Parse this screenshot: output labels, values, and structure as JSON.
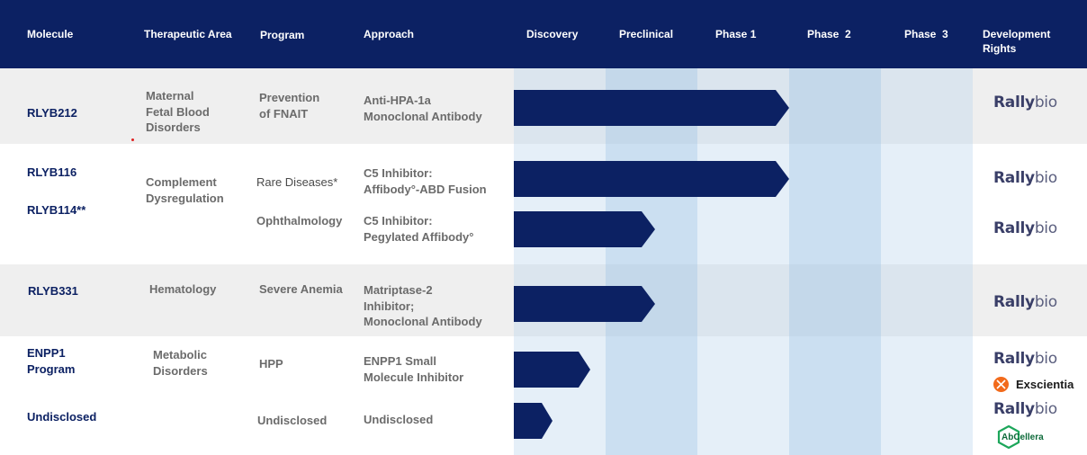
{
  "header": {
    "molecule": "Molecule",
    "therapeutic_area": "Therapeutic Area",
    "program": "Program",
    "approach": "Approach",
    "discovery": "Discovery",
    "preclinical": "Preclinical",
    "phase1": "Phase 1",
    "phase2": "Phase  2",
    "phase3": "Phase  3",
    "rights_line1": "Development",
    "rights_line2": "Rights"
  },
  "rows": {
    "rlyb212": {
      "molecule": "RLYB212",
      "area": [
        "Maternal",
        "Fetal Blood",
        "Disorders"
      ],
      "program": [
        "Prevention",
        "of FNAIT"
      ],
      "approach": [
        "Anti-HPA-1a",
        "Monoclonal Antibody"
      ],
      "stage": "Phase 1"
    },
    "rlyb116": {
      "molecule": "RLYB116",
      "program": "Rare Diseases*",
      "approach": [
        "C5 Inhibitor:",
        "Affibody°-ABD Fusion"
      ],
      "stage": "Phase 1"
    },
    "complement": {
      "area": [
        "Complement",
        "Dysregulation"
      ]
    },
    "rlyb114": {
      "molecule": "RLYB114**",
      "program": "Ophthalmology",
      "approach": [
        "C5 Inhibitor:",
        "Pegylated Affibody°"
      ],
      "stage": "Preclinical"
    },
    "rlyb331": {
      "molecule": "RLYB331",
      "area": "Hematology",
      "program": "Severe Anemia",
      "approach": [
        "Matriptase-2",
        "Inhibitor;",
        "Monoclonal Antibody"
      ],
      "stage": "Preclinical"
    },
    "enpp1": {
      "molecule": [
        "ENPP1",
        "Program"
      ],
      "area": [
        "Metabolic",
        "Disorders"
      ],
      "program": "HPP",
      "approach": [
        "ENPP1 Small",
        "Molecule Inhibitor"
      ],
      "stage": "Discovery"
    },
    "undisclosed": {
      "molecule": "Undisclosed",
      "program": "Undisclosed",
      "approach": "Undisclosed",
      "stage": "Discovery"
    }
  },
  "logos": {
    "rally_a": "Rally",
    "rally_b": "bio",
    "exscientia": "Exscientia",
    "abcellera": "AbCellera"
  },
  "colors": {
    "navy": "#0c2163",
    "orange": "#f26a1b",
    "green": "#0d6a3a"
  }
}
